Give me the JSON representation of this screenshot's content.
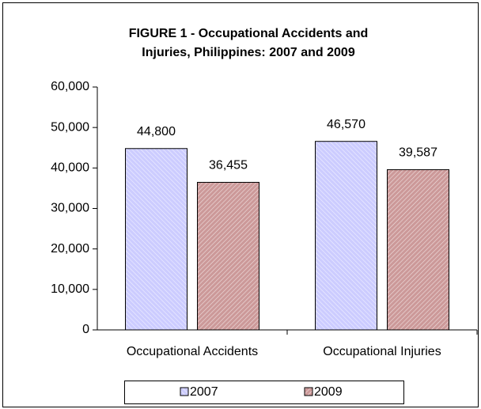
{
  "chart_data": {
    "type": "bar",
    "title": [
      "FIGURE 1 - Occupational Accidents and",
      "Injuries, Philippines: 2007 and 2009"
    ],
    "categories": [
      "Occupational Accidents",
      "Occupational Injuries"
    ],
    "series": [
      {
        "name": "2007",
        "color": "#ccccff",
        "values": [
          44800,
          46570
        ],
        "value_labels": [
          "44,800",
          "46,570"
        ]
      },
      {
        "name": "2009",
        "color": "#cc9999",
        "values": [
          36455,
          39587
        ],
        "value_labels": [
          "36,455",
          "39,587"
        ]
      }
    ],
    "ylim": [
      0,
      60000
    ],
    "yticks": [
      0,
      {
        "value": 10000,
        "label": "10,000"
      },
      {
        "value": 20000,
        "label": "20,000"
      },
      {
        "value": 30000,
        "label": "30,000"
      },
      {
        "value": 40000,
        "label": "40,000"
      },
      {
        "value": 50000,
        "label": "50,000"
      },
      {
        "value": 60000,
        "label": "60,000"
      }
    ],
    "grid": false,
    "legend": "bottom"
  }
}
